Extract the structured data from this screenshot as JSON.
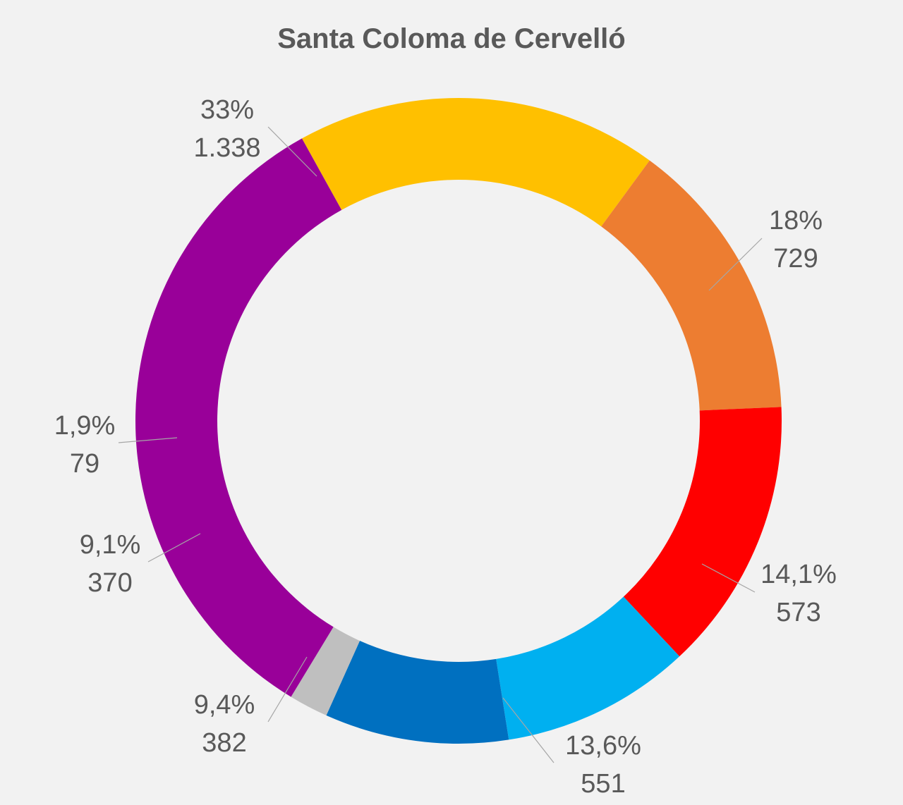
{
  "chart_data": {
    "type": "pie",
    "variant": "donut",
    "title": "Santa Coloma de Cervelló",
    "slices": [
      {
        "value": 729,
        "percent_label": "18%",
        "value_label": "729",
        "color": "#FFC000"
      },
      {
        "value": 573,
        "percent_label": "14,1%",
        "value_label": "573",
        "color": "#ED7D31"
      },
      {
        "value": 551,
        "percent_label": "13,6%",
        "value_label": "551",
        "color": "#FF0000"
      },
      {
        "value": 382,
        "percent_label": "9,4%",
        "value_label": "382",
        "color": "#00B0F0"
      },
      {
        "value": 370,
        "percent_label": "9,1%",
        "value_label": "370",
        "color": "#0070C0"
      },
      {
        "value": 79,
        "percent_label": "1,9%",
        "value_label": "79",
        "color": "#BFBFBF"
      },
      {
        "value": 1338,
        "percent_label": "33%",
        "value_label": "1.338",
        "color": "#990099"
      }
    ],
    "legend": "none"
  }
}
